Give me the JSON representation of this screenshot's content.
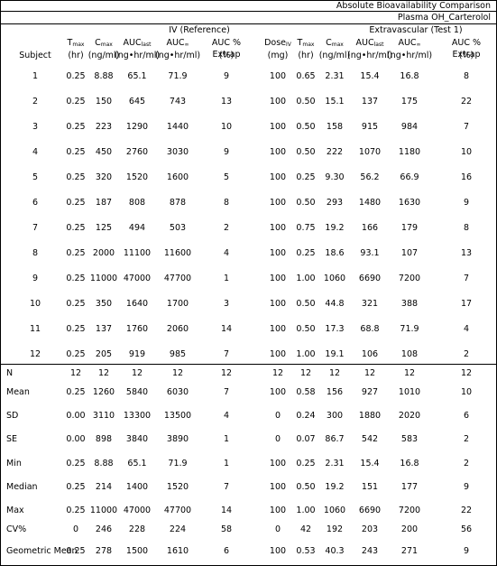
{
  "title": "Absolute Bioavailability Comparison",
  "subtitle": "Plasma OH_Carterolol",
  "groups": {
    "iv": "IV (Reference)",
    "ev": "Extravascular (Test 1)"
  },
  "headers": [
    {
      "main": "Subject",
      "sub": "",
      "unit": ""
    },
    {
      "main": "T",
      "sub": "max",
      "unit": "(hr)"
    },
    {
      "main": "C",
      "sub": "max",
      "unit": "(ng/ml)"
    },
    {
      "main": "AUC",
      "sub": "last",
      "unit": "(ng•hr/ml)"
    },
    {
      "main": "AUC",
      "sub": "∞",
      "unit": "(ng•hr/ml)"
    },
    {
      "main": "AUC % Extrap",
      "sub": "",
      "unit": "(%)"
    },
    {
      "main": "Dose",
      "sub": "IV",
      "unit": "(mg)"
    },
    {
      "main": "T",
      "sub": "max",
      "unit": "(hr)"
    },
    {
      "main": "C",
      "sub": "max",
      "unit": "(ng/ml)"
    },
    {
      "main": "AUC",
      "sub": "last",
      "unit": "(ng•hr/ml)"
    },
    {
      "main": "AUC",
      "sub": "∞",
      "unit": "(ng•hr/ml)"
    },
    {
      "main": "AUC % Extrap",
      "sub": "",
      "unit": "(%)"
    }
  ],
  "rows": [
    [
      "1",
      "0.25",
      "8.88",
      "65.1",
      "71.9",
      "9",
      "100",
      "0.65",
      "2.31",
      "15.4",
      "16.8",
      "8"
    ],
    [
      "2",
      "0.25",
      "150",
      "645",
      "743",
      "13",
      "100",
      "0.50",
      "15.1",
      "137",
      "175",
      "22"
    ],
    [
      "3",
      "0.25",
      "223",
      "1290",
      "1440",
      "10",
      "100",
      "0.50",
      "158",
      "915",
      "984",
      "7"
    ],
    [
      "4",
      "0.25",
      "450",
      "2760",
      "3030",
      "9",
      "100",
      "0.50",
      "222",
      "1070",
      "1180",
      "10"
    ],
    [
      "5",
      "0.25",
      "320",
      "1520",
      "1600",
      "5",
      "100",
      "0.25",
      "9.30",
      "56.2",
      "66.9",
      "16"
    ],
    [
      "6",
      "0.25",
      "187",
      "808",
      "878",
      "8",
      "100",
      "0.50",
      "293",
      "1480",
      "1630",
      "9"
    ],
    [
      "7",
      "0.25",
      "125",
      "494",
      "503",
      "2",
      "100",
      "0.75",
      "19.2",
      "166",
      "179",
      "8"
    ],
    [
      "8",
      "0.25",
      "2000",
      "11100",
      "11600",
      "4",
      "100",
      "0.25",
      "18.6",
      "93.1",
      "107",
      "13"
    ],
    [
      "9",
      "0.25",
      "11000",
      "47000",
      "47700",
      "1",
      "100",
      "1.00",
      "1060",
      "6690",
      "7200",
      "7"
    ],
    [
      "10",
      "0.25",
      "350",
      "1640",
      "1700",
      "3",
      "100",
      "0.50",
      "44.8",
      "321",
      "388",
      "17"
    ],
    [
      "11",
      "0.25",
      "137",
      "1760",
      "2060",
      "14",
      "100",
      "0.50",
      "17.3",
      "68.8",
      "71.9",
      "4"
    ],
    [
      "12",
      "0.25",
      "205",
      "919",
      "985",
      "7",
      "100",
      "1.00",
      "19.1",
      "106",
      "108",
      "2"
    ]
  ],
  "stats": [
    [
      "N",
      "12",
      "12",
      "12",
      "12",
      "12",
      "12",
      "12",
      "12",
      "12",
      "12",
      "12"
    ],
    [
      "Mean",
      "0.25",
      "1260",
      "5840",
      "6030",
      "7",
      "100",
      "0.58",
      "156",
      "927",
      "1010",
      "10"
    ],
    [
      "SD",
      "0.00",
      "3110",
      "13300",
      "13500",
      "4",
      "0",
      "0.24",
      "300",
      "1880",
      "2020",
      "6"
    ],
    [
      "SE",
      "0.00",
      "898",
      "3840",
      "3890",
      "1",
      "0",
      "0.07",
      "86.7",
      "542",
      "583",
      "2"
    ],
    [
      "Min",
      "0.25",
      "8.88",
      "65.1",
      "71.9",
      "1",
      "100",
      "0.25",
      "2.31",
      "15.4",
      "16.8",
      "2"
    ],
    [
      "Median",
      "0.25",
      "214",
      "1400",
      "1520",
      "7",
      "100",
      "0.50",
      "19.2",
      "151",
      "177",
      "9"
    ],
    [
      "Max",
      "0.25",
      "11000",
      "47000",
      "47700",
      "14",
      "100",
      "1.00",
      "1060",
      "6690",
      "7200",
      "22"
    ],
    [
      "CV%",
      "0",
      "246",
      "228",
      "224",
      "58",
      "0",
      "42",
      "192",
      "203",
      "200",
      "56"
    ],
    [
      "Geometric Mean",
      "0.25",
      "278",
      "1500",
      "1610",
      "6",
      "100",
      "0.53",
      "40.3",
      "243",
      "271",
      "9"
    ]
  ]
}
